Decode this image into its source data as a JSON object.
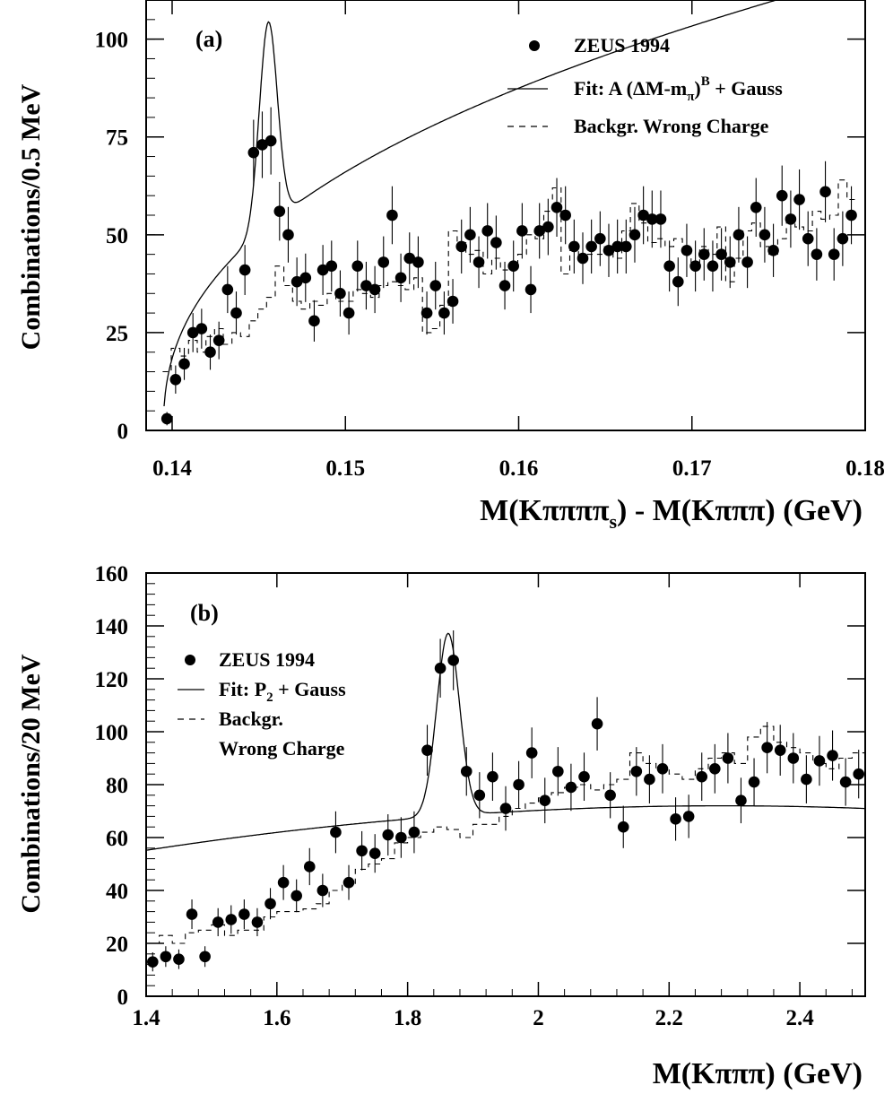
{
  "chart_data": [
    {
      "type": "scatter",
      "panel_label": "(a)",
      "xlabel": "M(Kππππₛ) - M(Kπππ)  (GeV)",
      "ylabel": "Combinations/0.5  MeV",
      "xlim": [
        0.1385,
        0.18
      ],
      "ylim": [
        0,
        110
      ],
      "xticks": [
        0.14,
        0.15,
        0.16,
        0.17,
        0.18
      ],
      "xtick_labels": [
        "0.14",
        "0.15",
        "0.16",
        "0.17",
        "0.18"
      ],
      "yticks": [
        0,
        25,
        50,
        75,
        100
      ],
      "ytick_labels": [
        "0",
        "25",
        "50",
        "75",
        "100"
      ],
      "legend_position": "top-right",
      "legend": {
        "data": "ZEUS 1994",
        "fit_prefix": "Fit: A (ΔM-m",
        "fit_sub": "π",
        "fit_close": ")",
        "fit_sup": "B",
        "fit_suffix": " + Gauss",
        "background": "Backgr. Wrong Charge"
      },
      "series": [
        {
          "name": "ZEUS 1994",
          "kind": "points",
          "x": [
            0.1397,
            0.1402,
            0.1407,
            0.1412,
            0.1417,
            0.1422,
            0.1427,
            0.1432,
            0.1437,
            0.1442,
            0.1447,
            0.1452,
            0.1457,
            0.1462,
            0.1467,
            0.1472,
            0.1477,
            0.1482,
            0.1487,
            0.1492,
            0.1497,
            0.1502,
            0.1507,
            0.1512,
            0.1517,
            0.1522,
            0.1527,
            0.1532,
            0.1537,
            0.1542,
            0.1547,
            0.1552,
            0.1557,
            0.1562,
            0.1567,
            0.1572,
            0.1577,
            0.1582,
            0.1587,
            0.1592,
            0.1597,
            0.1602,
            0.1607,
            0.1612,
            0.1617,
            0.1622,
            0.1627,
            0.1632,
            0.1637,
            0.1642,
            0.1647,
            0.1652,
            0.1657,
            0.1662,
            0.1667,
            0.1672,
            0.1677,
            0.1682,
            0.1687,
            0.1692,
            0.1697,
            0.1702,
            0.1707,
            0.1712,
            0.1717,
            0.1722,
            0.1727,
            0.1732,
            0.1737,
            0.1742,
            0.1747,
            0.1752,
            0.1757,
            0.1762,
            0.1767,
            0.1772,
            0.1777,
            0.1782,
            0.1787,
            0.1792
          ],
          "y": [
            3,
            13,
            17,
            25,
            26,
            20,
            23,
            36,
            30,
            41,
            71,
            73,
            74,
            56,
            50,
            38,
            39,
            28,
            41,
            42,
            35,
            30,
            42,
            37,
            36,
            43,
            55,
            39,
            44,
            43,
            30,
            37,
            30,
            33,
            47,
            50,
            43,
            51,
            48,
            37,
            42,
            51,
            36,
            51,
            52,
            57,
            55,
            47,
            44,
            47,
            49,
            46,
            47,
            47,
            50,
            55,
            54,
            54,
            42,
            38,
            46,
            42,
            45,
            42,
            45,
            43,
            50,
            43,
            57,
            50,
            46,
            60,
            54,
            59,
            49,
            45,
            61,
            45,
            49,
            55
          ],
          "err": [
            1.7,
            3.6,
            4.1,
            5,
            5.1,
            4.5,
            4.8,
            6,
            5.5,
            6.4,
            8.4,
            8.5,
            8.6,
            7.5,
            7.1,
            6.2,
            6.2,
            5.3,
            6.4,
            6.5,
            5.9,
            5.5,
            6.5,
            6.1,
            6,
            6.6,
            7.4,
            6.2,
            6.6,
            6.6,
            5.5,
            6.1,
            5.5,
            5.7,
            6.9,
            7.1,
            6.6,
            7.1,
            6.9,
            6.1,
            6.5,
            7.1,
            6,
            7.1,
            7.2,
            7.5,
            7.4,
            6.9,
            6.6,
            6.9,
            7,
            6.8,
            6.9,
            6.9,
            7.1,
            7.4,
            7.3,
            7.3,
            6.5,
            6.2,
            6.8,
            6.5,
            6.7,
            6.5,
            6.7,
            6.6,
            7.1,
            6.6,
            7.5,
            7.1,
            6.8,
            7.7,
            7.3,
            7.7,
            7,
            6.7,
            7.8,
            6.7,
            7,
            7.4
          ]
        },
        {
          "name": "Backgr. Wrong Charge",
          "kind": "histogram",
          "x": [
            0.1397,
            0.1402,
            0.1407,
            0.1412,
            0.1417,
            0.1422,
            0.1427,
            0.1432,
            0.1437,
            0.1442,
            0.1447,
            0.1452,
            0.1457,
            0.1462,
            0.1467,
            0.1472,
            0.1477,
            0.1482,
            0.1487,
            0.1492,
            0.1497,
            0.1502,
            0.1507,
            0.1512,
            0.1517,
            0.1522,
            0.1527,
            0.1532,
            0.1537,
            0.1542,
            0.1547,
            0.1552,
            0.1557,
            0.1562,
            0.1567,
            0.1572,
            0.1577,
            0.1582,
            0.1587,
            0.1592,
            0.1597,
            0.1602,
            0.1607,
            0.1612,
            0.1617,
            0.1622,
            0.1627,
            0.1632,
            0.1637,
            0.1642,
            0.1647,
            0.1652,
            0.1657,
            0.1662,
            0.1667,
            0.1672,
            0.1677,
            0.1682,
            0.1687,
            0.1692,
            0.1697,
            0.1702,
            0.1707,
            0.1712,
            0.1717,
            0.1722,
            0.1727,
            0.1732,
            0.1737,
            0.1742,
            0.1747,
            0.1752,
            0.1757,
            0.1762,
            0.1767,
            0.1772,
            0.1777,
            0.1782,
            0.1787,
            0.1792
          ],
          "y": [
            15,
            21,
            19,
            23,
            20,
            24,
            26,
            22,
            25,
            24,
            28,
            31,
            34,
            42,
            37,
            33,
            31,
            33,
            32,
            35,
            33,
            33,
            36,
            35,
            34,
            37,
            38,
            37,
            36,
            39,
            25,
            26,
            32,
            51,
            48,
            45,
            46,
            40,
            44,
            41,
            42,
            45,
            50,
            49,
            56,
            62,
            40,
            46,
            44,
            45,
            45,
            47,
            44,
            51,
            58,
            53,
            48,
            49,
            47,
            49,
            46,
            43,
            47,
            45,
            52,
            38,
            44,
            51,
            53,
            47,
            45,
            49,
            53,
            52,
            51,
            56,
            54,
            55,
            64,
            59
          ]
        },
        {
          "name": "Fit: A (ΔM-mπ)^B + Gauss",
          "kind": "curve",
          "model": "bg_a",
          "params": {
            "A": 123,
            "B": 0.42,
            "m_pi": 0.1395,
            "mu": 0.14555,
            "sigma": 0.00052,
            "amp": 52
          }
        }
      ]
    },
    {
      "type": "scatter",
      "panel_label": "(b)",
      "xlabel": "M(Kπππ)  (GeV)",
      "ylabel": "Combinations/20  MeV",
      "xlim": [
        1.4,
        2.5
      ],
      "ylim": [
        0,
        160
      ],
      "xticks": [
        1.4,
        1.6,
        1.8,
        2.0,
        2.2,
        2.4
      ],
      "xtick_labels": [
        "1.4",
        "1.6",
        "1.8",
        "2",
        "2.2",
        "2.4"
      ],
      "yticks": [
        0,
        20,
        40,
        60,
        80,
        100,
        120,
        140,
        160
      ],
      "ytick_labels": [
        "0",
        "20",
        "40",
        "60",
        "80",
        "100",
        "120",
        "140",
        "160"
      ],
      "legend_position": "top-left",
      "legend": {
        "data": "ZEUS 1994",
        "fit_prefix": "Fit: P",
        "fit_sub": "2",
        "fit_suffix": " + Gauss",
        "background_line1": "Backgr.",
        "background_line2": "Wrong Charge"
      },
      "series": [
        {
          "name": "ZEUS 1994",
          "kind": "points",
          "x": [
            1.41,
            1.43,
            1.45,
            1.47,
            1.49,
            1.51,
            1.53,
            1.55,
            1.57,
            1.59,
            1.61,
            1.63,
            1.65,
            1.67,
            1.69,
            1.71,
            1.73,
            1.75,
            1.77,
            1.79,
            1.81,
            1.83,
            1.85,
            1.87,
            1.89,
            1.91,
            1.93,
            1.95,
            1.97,
            1.99,
            2.01,
            2.03,
            2.05,
            2.07,
            2.09,
            2.11,
            2.13,
            2.15,
            2.17,
            2.19,
            2.21,
            2.23,
            2.25,
            2.27,
            2.29,
            2.31,
            2.33,
            2.35,
            2.37,
            2.39,
            2.41,
            2.43,
            2.45,
            2.47,
            2.49
          ],
          "y": [
            13,
            15,
            14,
            31,
            15,
            28,
            29,
            31,
            28,
            35,
            43,
            38,
            49,
            40,
            62,
            43,
            55,
            54,
            61,
            60,
            62,
            93,
            124,
            127,
            85,
            76,
            83,
            71,
            80,
            92,
            74,
            85,
            79,
            83,
            103,
            76,
            64,
            85,
            82,
            86,
            67,
            68,
            83,
            86,
            90,
            74,
            81,
            94,
            93,
            90,
            82,
            89,
            91,
            81,
            84
          ],
          "err": [
            3.6,
            3.9,
            3.7,
            5.6,
            3.9,
            5.3,
            5.4,
            5.6,
            5.3,
            5.9,
            6.6,
            6.2,
            7,
            6.3,
            7.9,
            6.6,
            7.4,
            7.3,
            7.8,
            7.7,
            7.9,
            9.6,
            11.1,
            11.3,
            9.2,
            8.7,
            9.1,
            8.4,
            8.9,
            9.6,
            8.6,
            9.2,
            8.9,
            9.1,
            10.1,
            8.7,
            8,
            9.2,
            9.1,
            9.3,
            8.2,
            8.2,
            9.1,
            9.3,
            9.5,
            8.6,
            9,
            9.7,
            9.6,
            9.5,
            9.1,
            9.4,
            9.5,
            9,
            9.2
          ]
        },
        {
          "name": "Backgr. Wrong Charge",
          "kind": "histogram",
          "x": [
            1.41,
            1.43,
            1.45,
            1.47,
            1.49,
            1.51,
            1.53,
            1.55,
            1.57,
            1.59,
            1.61,
            1.63,
            1.65,
            1.67,
            1.69,
            1.71,
            1.73,
            1.75,
            1.77,
            1.79,
            1.81,
            1.83,
            1.85,
            1.87,
            1.89,
            1.91,
            1.93,
            1.95,
            1.97,
            1.99,
            2.01,
            2.03,
            2.05,
            2.07,
            2.09,
            2.11,
            2.13,
            2.15,
            2.17,
            2.19,
            2.21,
            2.23,
            2.25,
            2.27,
            2.29,
            2.31,
            2.33,
            2.35,
            2.37,
            2.39,
            2.41,
            2.43,
            2.45,
            2.47,
            2.49
          ],
          "y": [
            20,
            23,
            20,
            24,
            25,
            27,
            23,
            25,
            25,
            30,
            32,
            32,
            33,
            35,
            40,
            42,
            48,
            50,
            52,
            58,
            60,
            62,
            64,
            63,
            60,
            65,
            65,
            68,
            71,
            73,
            75,
            77,
            79,
            80,
            78,
            80,
            82,
            92,
            88,
            86,
            84,
            82,
            86,
            90,
            92,
            88,
            98,
            102,
            96,
            94,
            92,
            88,
            86,
            90,
            92
          ]
        },
        {
          "name": "Fit: P2 + Gauss",
          "kind": "curve",
          "model": "bg_b",
          "params": {
            "c0": 69,
            "c1": 16.1,
            "c2": -21.6,
            "x0": 1.91,
            "mu": 1.862,
            "sigma": 0.0175,
            "amp": 69
          }
        }
      ]
    }
  ]
}
